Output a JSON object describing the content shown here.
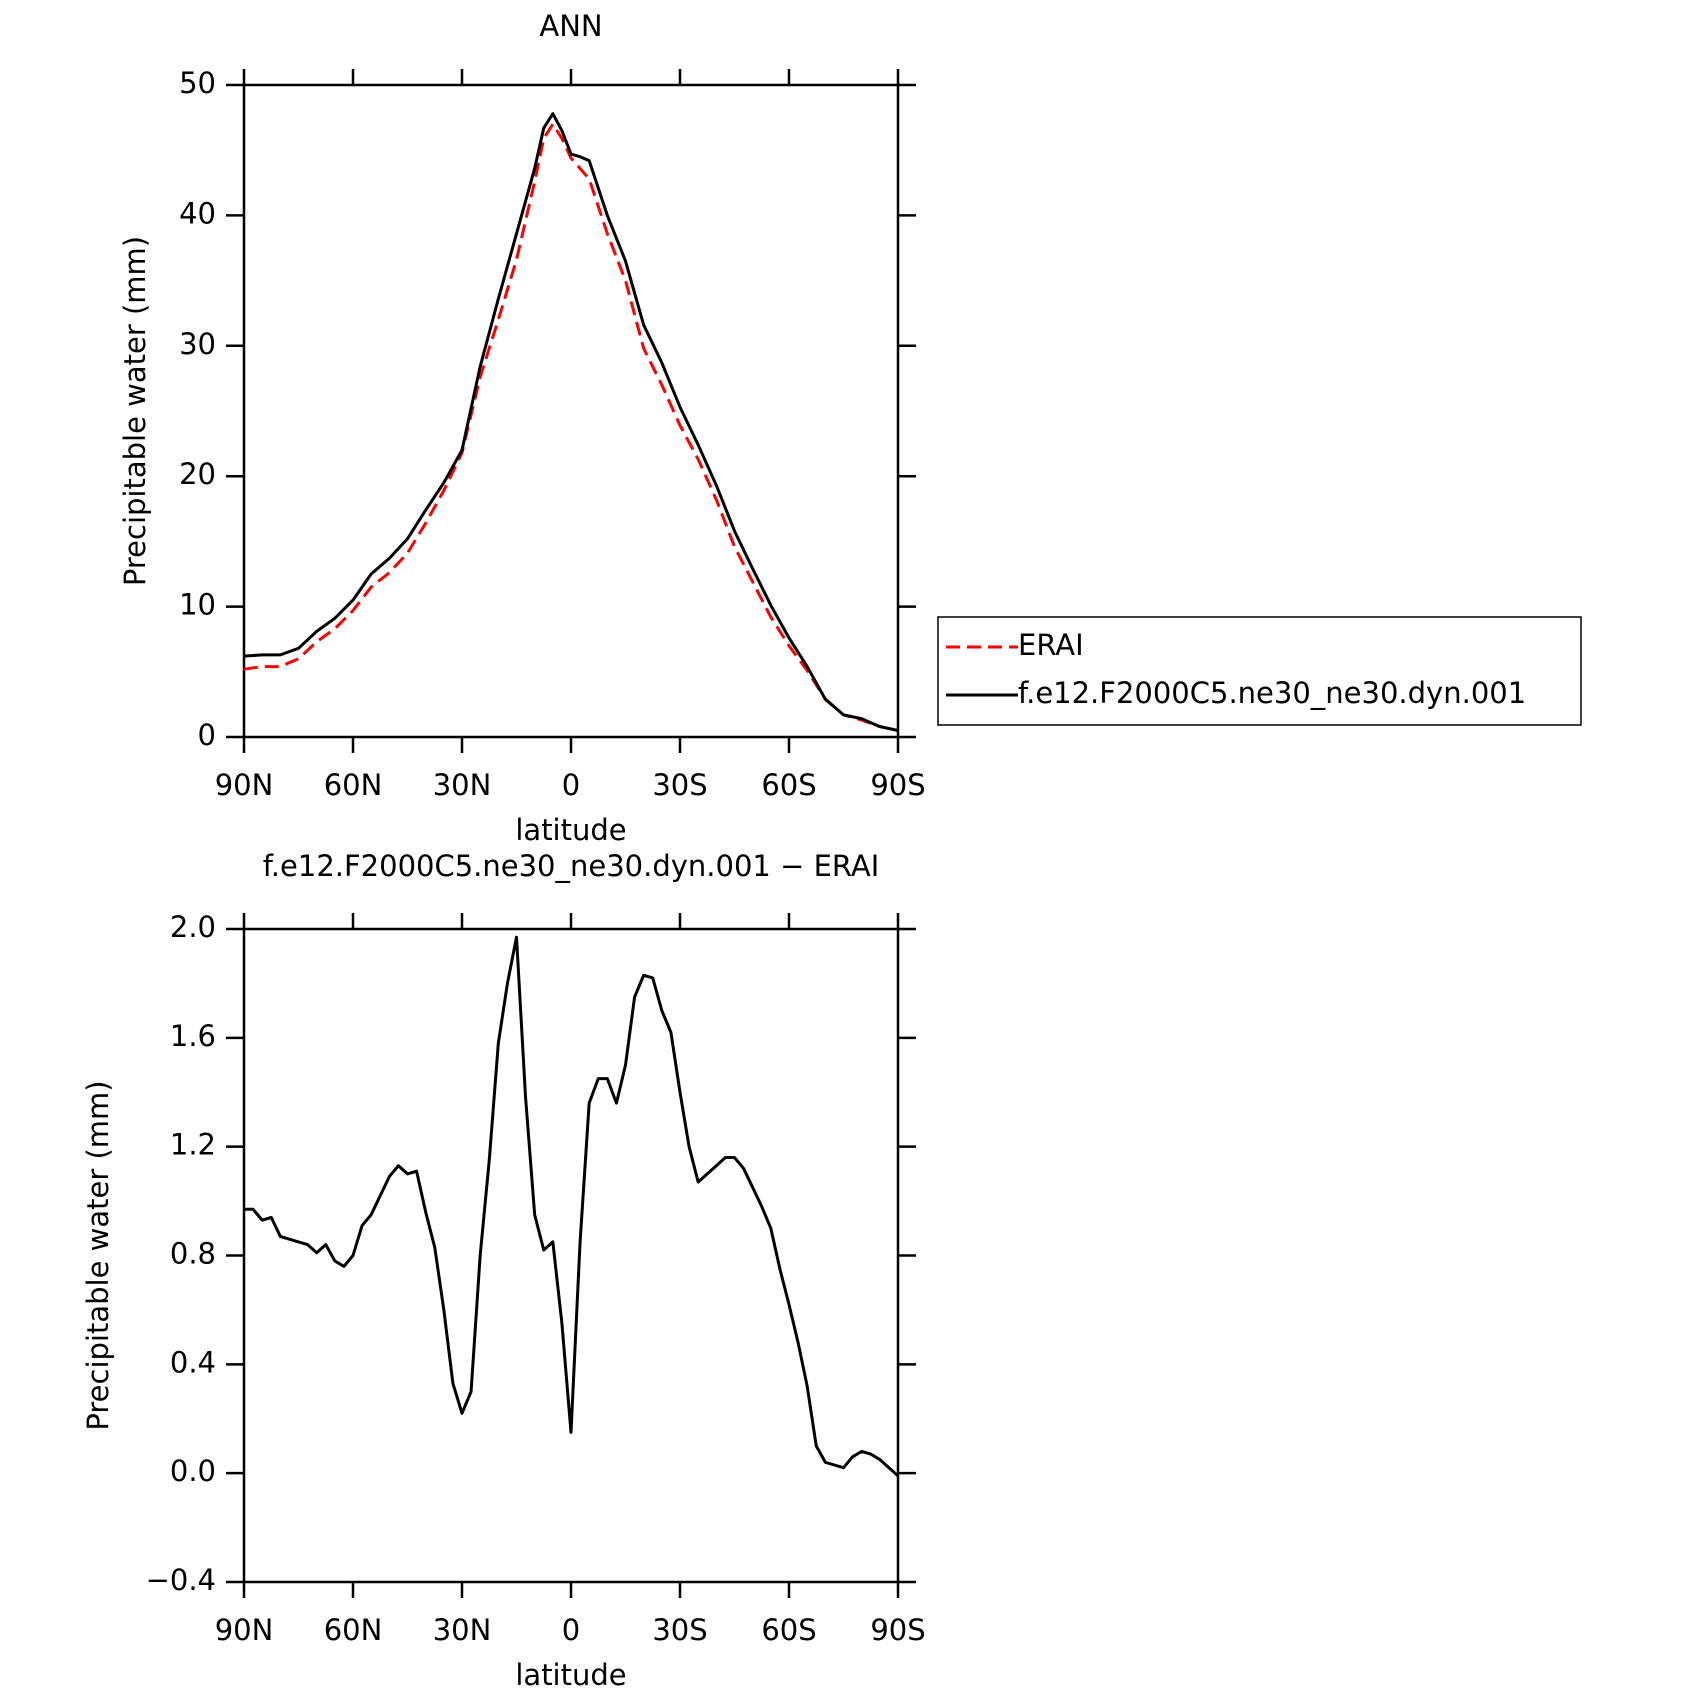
{
  "chart_data": [
    {
      "type": "line",
      "title": "ANN",
      "xlabel": "latitude",
      "ylabel": "Precipitable water (mm)",
      "x": [
        90,
        85,
        80,
        75,
        70,
        65,
        60,
        55,
        50,
        45,
        40,
        35,
        30,
        25,
        20,
        15,
        10,
        7.5,
        5,
        2.5,
        0,
        -2.5,
        -5,
        -10,
        -15,
        -20,
        -25,
        -30,
        -35,
        -40,
        -45,
        -50,
        -55,
        -60,
        -65,
        -70,
        -75,
        -80,
        -85,
        -90
      ],
      "xlim": [
        90,
        -90
      ],
      "xticks": [
        {
          "value": 90,
          "label": "90N"
        },
        {
          "value": 60,
          "label": "60N"
        },
        {
          "value": 30,
          "label": "30N"
        },
        0,
        {
          "value": -30,
          "label": "30S"
        },
        {
          "value": -60,
          "label": "60S"
        },
        {
          "value": -90,
          "label": "90S"
        }
      ],
      "ylim": [
        0,
        50
      ],
      "yticks": [
        0,
        10,
        20,
        30,
        40,
        50
      ],
      "legend": "outside-right",
      "series": [
        {
          "name": "ERAI",
          "color": "#ff0000",
          "dash": "dashed",
          "values": [
            5.2,
            5.4,
            5.4,
            6.0,
            7.3,
            8.3,
            9.7,
            11.5,
            12.6,
            14.1,
            16.4,
            18.9,
            21.8,
            27.6,
            32.0,
            36.6,
            42.6,
            45.9,
            47.0,
            45.9,
            44.4,
            43.6,
            42.8,
            38.6,
            35.0,
            29.8,
            27.0,
            23.9,
            21.3,
            18.2,
            14.6,
            11.9,
            9.2,
            7.0,
            5.1,
            2.9,
            1.7,
            1.3,
            0.8,
            0.5
          ]
        },
        {
          "name": "f.e12.F2000C5.ne30_ne30.dyn.001",
          "color": "#000000",
          "dash": "solid",
          "values": [
            6.2,
            6.3,
            6.3,
            6.8,
            8.1,
            9.1,
            10.5,
            12.5,
            13.7,
            15.2,
            17.4,
            19.5,
            22.0,
            28.4,
            33.6,
            38.6,
            43.6,
            46.7,
            47.8,
            46.5,
            44.7,
            44.5,
            44.2,
            40.0,
            36.5,
            31.6,
            28.7,
            25.3,
            22.4,
            19.3,
            15.8,
            12.9,
            10.1,
            7.6,
            5.4,
            2.9,
            1.7,
            1.4,
            0.8,
            0.5
          ]
        }
      ]
    },
    {
      "type": "line",
      "title": "f.e12.F2000C5.ne30_ne30.dyn.001 − ERAI",
      "xlabel": "latitude",
      "ylabel": "Precipitable water (mm)",
      "x": [
        90,
        87.5,
        85,
        82.5,
        80,
        77.5,
        75,
        72.5,
        70,
        67.5,
        65,
        62.5,
        60,
        57.5,
        55,
        52.5,
        50,
        47.5,
        45,
        42.5,
        40,
        37.5,
        35,
        32.5,
        30,
        27.5,
        25,
        22.5,
        20,
        17.5,
        15,
        12.5,
        10,
        7.5,
        5,
        2.5,
        0,
        -2.5,
        -5,
        -7.5,
        -10,
        -12.5,
        -15,
        -17.5,
        -20,
        -22.5,
        -25,
        -27.5,
        -30,
        -32.5,
        -35,
        -37.5,
        -40,
        -42.5,
        -45,
        -47.5,
        -50,
        -52.5,
        -55,
        -57.5,
        -60,
        -62.5,
        -65,
        -67.5,
        -70,
        -72.5,
        -75,
        -77.5,
        -80,
        -82.5,
        -85,
        -87.5,
        -90
      ],
      "xlim": [
        90,
        -90
      ],
      "xticks": [
        {
          "value": 90,
          "label": "90N"
        },
        {
          "value": 60,
          "label": "60N"
        },
        {
          "value": 30,
          "label": "30N"
        },
        0,
        {
          "value": -30,
          "label": "30S"
        },
        {
          "value": -60,
          "label": "60S"
        },
        {
          "value": -90,
          "label": "90S"
        }
      ],
      "ylim": [
        -0.4,
        2.0
      ],
      "yticks": [
        {
          "value": -0.4,
          "label": "−0.4"
        },
        {
          "value": 0,
          "label": "0.0"
        },
        0.4,
        0.8,
        1.2,
        1.6,
        {
          "value": 2.0,
          "label": "2.0"
        }
      ],
      "series": [
        {
          "color": "#000000",
          "dash": "solid",
          "values": [
            0.97,
            0.97,
            0.93,
            0.94,
            0.87,
            0.86,
            0.85,
            0.84,
            0.81,
            0.84,
            0.78,
            0.76,
            0.8,
            0.91,
            0.95,
            1.02,
            1.09,
            1.13,
            1.1,
            1.11,
            0.96,
            0.83,
            0.6,
            0.33,
            0.22,
            0.3,
            0.8,
            1.15,
            1.58,
            1.8,
            1.97,
            1.38,
            0.95,
            0.82,
            0.85,
            0.55,
            0.15,
            0.85,
            1.36,
            1.45,
            1.45,
            1.36,
            1.5,
            1.75,
            1.83,
            1.82,
            1.7,
            1.62,
            1.4,
            1.2,
            1.07,
            1.1,
            1.13,
            1.16,
            1.16,
            1.12,
            1.05,
            0.98,
            0.9,
            0.75,
            0.62,
            0.48,
            0.32,
            0.1,
            0.04,
            0.03,
            0.02,
            0.06,
            0.08,
            0.07,
            0.05,
            0.02,
            -0.01
          ]
        }
      ]
    }
  ]
}
